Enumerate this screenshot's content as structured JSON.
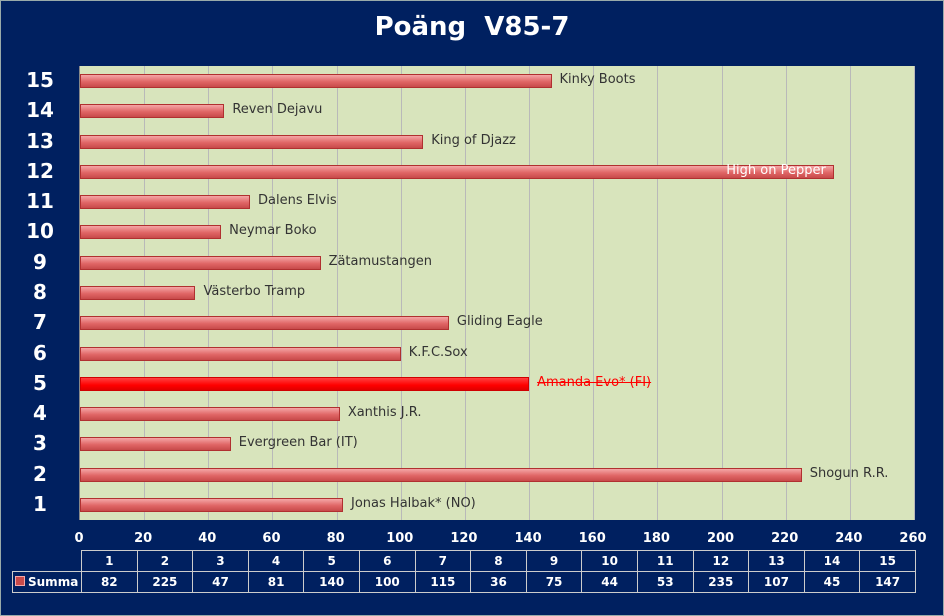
{
  "chart_data": {
    "type": "bar",
    "orientation": "horizontal",
    "title": "Poäng  V85-7",
    "categories": [
      "1",
      "2",
      "3",
      "4",
      "5",
      "6",
      "7",
      "8",
      "9",
      "10",
      "11",
      "12",
      "13",
      "14",
      "15"
    ],
    "names": [
      "Jonas Halbak* (NO)",
      "Shogun R.R.",
      "Evergreen Bar (IT)",
      "Xanthis J.R.",
      "Amanda Evo* (FI)",
      "K.F.C.Sox",
      "Gliding Eagle",
      "Västerbo Tramp",
      "Zätamustangen",
      "Neymar Boko",
      "Dalens Elvis",
      "High on Pepper",
      "King of Djazz",
      "Reven Dejavu",
      "Kinky Boots"
    ],
    "series": [
      {
        "name": "Summa",
        "values": [
          82,
          225,
          47,
          81,
          140,
          100,
          115,
          36,
          75,
          44,
          53,
          235,
          107,
          45,
          147
        ]
      }
    ],
    "highlighted": "5",
    "xlim": [
      0,
      260
    ],
    "xticks": [
      0,
      20,
      40,
      60,
      80,
      100,
      120,
      140,
      160,
      180,
      200,
      220,
      240,
      260
    ],
    "grid": true,
    "data_table": true,
    "colors": {
      "bar": "#e06666",
      "highlight": "#ff0000",
      "plot_bg": "#d8e4bc",
      "background": "#002060"
    }
  }
}
